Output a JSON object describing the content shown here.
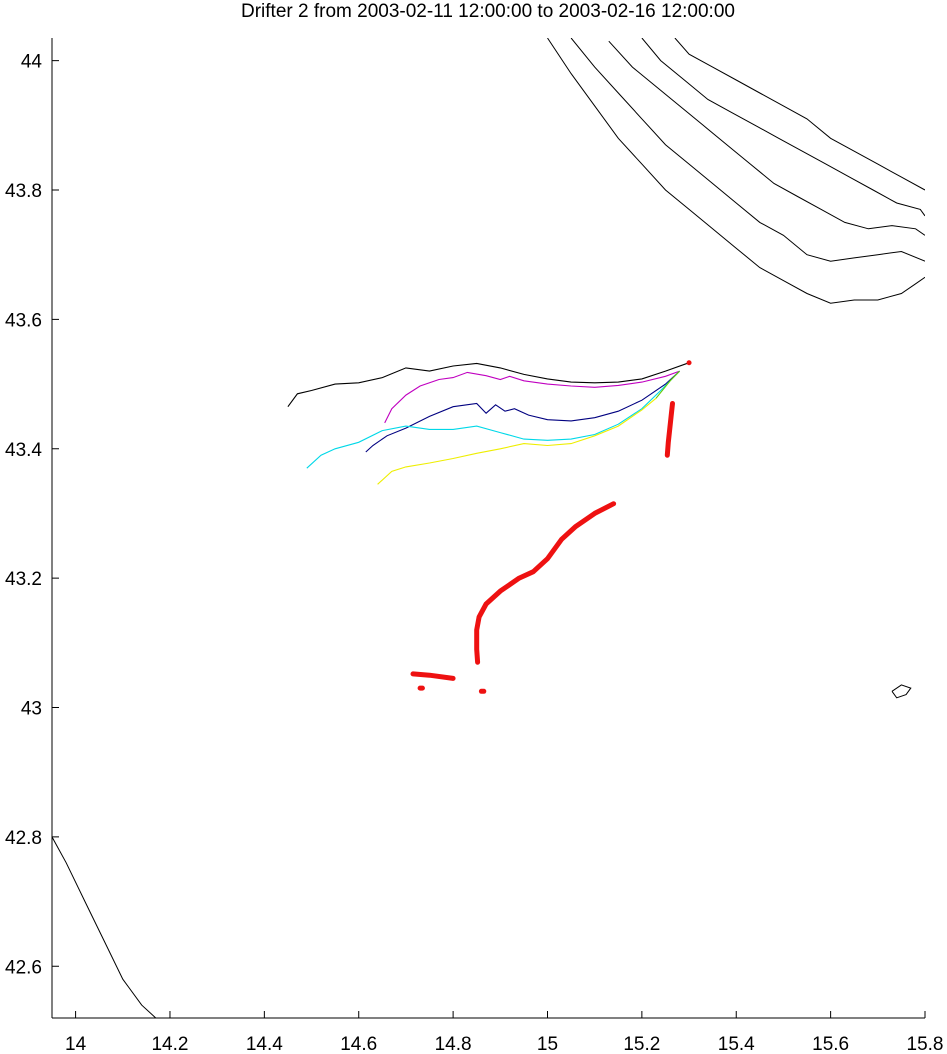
{
  "title": "Drifter 2 from 2003-02-11 12:00:00 to 2003-02-16 12:00:00",
  "chart_data": {
    "type": "map",
    "title": "Drifter 2 from 2003-02-11 12:00:00 to 2003-02-16 12:00:00",
    "xlabel": "",
    "ylabel": "",
    "xlim": [
      13.95,
      15.8
    ],
    "ylim": [
      42.52,
      44.035
    ],
    "x_ticks": [
      14,
      14.2,
      14.4,
      14.6,
      14.8,
      15,
      15.2,
      15.4,
      15.6,
      15.8
    ],
    "x_tick_labels": [
      "14",
      "14.2",
      "14.4",
      "14.6",
      "14.8",
      "15",
      "15.2",
      "15.4",
      "15.6",
      "15.8"
    ],
    "y_ticks": [
      42.6,
      42.8,
      43,
      43.2,
      43.4,
      43.6,
      43.8,
      44
    ],
    "y_tick_labels": [
      "42.6",
      "42.8",
      "43",
      "43.2",
      "43.4",
      "43.6",
      "43.8",
      "44"
    ],
    "grid": false,
    "colors": {
      "observed": "#ee1111",
      "coast": "#000000",
      "black": "#000000",
      "magenta": "#c000c0",
      "navy": "#000080",
      "cyan": "#00d8e8",
      "yellow": "#eeee00",
      "green": "#66cc00"
    },
    "observed_track": [
      [
        [
          15.265,
          43.47
        ],
        [
          15.262,
          43.45
        ],
        [
          15.259,
          43.43
        ],
        [
          15.256,
          43.41
        ],
        [
          15.254,
          43.39
        ]
      ],
      [
        [
          15.14,
          43.315
        ],
        [
          15.1,
          43.3
        ],
        [
          15.06,
          43.28
        ],
        [
          15.03,
          43.26
        ],
        [
          15.0,
          43.23
        ],
        [
          14.97,
          43.21
        ],
        [
          14.94,
          43.2
        ],
        [
          14.9,
          43.18
        ],
        [
          14.87,
          43.16
        ],
        [
          14.855,
          43.14
        ],
        [
          14.85,
          43.12
        ],
        [
          14.85,
          43.09
        ],
        [
          14.852,
          43.07
        ]
      ],
      [
        [
          14.715,
          43.052
        ],
        [
          14.75,
          43.05
        ],
        [
          14.8,
          43.045
        ]
      ],
      [
        [
          14.73,
          43.03
        ],
        [
          14.735,
          43.03
        ]
      ],
      [
        [
          14.86,
          43.025
        ],
        [
          14.865,
          43.025
        ]
      ]
    ],
    "model_tracks": [
      {
        "color": "black",
        "points": [
          [
            15.3,
            43.533
          ],
          [
            15.25,
            43.52
          ],
          [
            15.2,
            43.508
          ],
          [
            15.15,
            43.503
          ],
          [
            15.1,
            43.502
          ],
          [
            15.05,
            43.503
          ],
          [
            15.0,
            43.508
          ],
          [
            14.95,
            43.515
          ],
          [
            14.9,
            43.525
          ],
          [
            14.85,
            43.532
          ],
          [
            14.8,
            43.528
          ],
          [
            14.75,
            43.52
          ],
          [
            14.7,
            43.525
          ],
          [
            14.65,
            43.51
          ],
          [
            14.6,
            43.502
          ],
          [
            14.55,
            43.5
          ],
          [
            14.5,
            43.49
          ],
          [
            14.47,
            43.485
          ],
          [
            14.45,
            43.465
          ]
        ]
      },
      {
        "color": "magenta",
        "points": [
          [
            15.28,
            43.52
          ],
          [
            15.25,
            43.512
          ],
          [
            15.2,
            43.503
          ],
          [
            15.15,
            43.498
          ],
          [
            15.1,
            43.495
          ],
          [
            15.05,
            43.497
          ],
          [
            15.0,
            43.5
          ],
          [
            14.95,
            43.505
          ],
          [
            14.92,
            43.512
          ],
          [
            14.9,
            43.507
          ],
          [
            14.87,
            43.513
          ],
          [
            14.83,
            43.518
          ],
          [
            14.8,
            43.51
          ],
          [
            14.77,
            43.507
          ],
          [
            14.73,
            43.497
          ],
          [
            14.7,
            43.483
          ],
          [
            14.67,
            43.462
          ],
          [
            14.655,
            43.44
          ]
        ]
      },
      {
        "color": "navy",
        "points": [
          [
            15.28,
            43.52
          ],
          [
            15.25,
            43.5
          ],
          [
            15.2,
            43.475
          ],
          [
            15.15,
            43.458
          ],
          [
            15.1,
            43.448
          ],
          [
            15.05,
            43.443
          ],
          [
            15.0,
            43.445
          ],
          [
            14.96,
            43.452
          ],
          [
            14.93,
            43.462
          ],
          [
            14.91,
            43.458
          ],
          [
            14.89,
            43.468
          ],
          [
            14.87,
            43.455
          ],
          [
            14.85,
            43.47
          ],
          [
            14.8,
            43.465
          ],
          [
            14.75,
            43.45
          ],
          [
            14.7,
            43.432
          ],
          [
            14.66,
            43.42
          ],
          [
            14.63,
            43.405
          ],
          [
            14.615,
            43.395
          ]
        ]
      },
      {
        "color": "cyan",
        "points": [
          [
            15.28,
            43.52
          ],
          [
            15.24,
            43.49
          ],
          [
            15.2,
            43.462
          ],
          [
            15.15,
            43.438
          ],
          [
            15.1,
            43.422
          ],
          [
            15.05,
            43.415
          ],
          [
            15.0,
            43.413
          ],
          [
            14.95,
            43.415
          ],
          [
            14.9,
            43.425
          ],
          [
            14.85,
            43.435
          ],
          [
            14.8,
            43.43
          ],
          [
            14.75,
            43.43
          ],
          [
            14.7,
            43.435
          ],
          [
            14.65,
            43.428
          ],
          [
            14.6,
            43.41
          ],
          [
            14.55,
            43.4
          ],
          [
            14.52,
            43.39
          ],
          [
            14.49,
            43.37
          ]
        ]
      },
      {
        "color": "yellow",
        "points": [
          [
            15.23,
            43.478
          ],
          [
            15.2,
            43.46
          ],
          [
            15.15,
            43.435
          ],
          [
            15.1,
            43.42
          ],
          [
            15.05,
            43.408
          ],
          [
            15.0,
            43.405
          ],
          [
            14.95,
            43.408
          ],
          [
            14.9,
            43.4
          ],
          [
            14.85,
            43.393
          ],
          [
            14.8,
            43.385
          ],
          [
            14.75,
            43.378
          ],
          [
            14.7,
            43.372
          ],
          [
            14.67,
            43.365
          ],
          [
            14.64,
            43.345
          ]
        ]
      },
      {
        "color": "green",
        "points": [
          [
            15.28,
            43.52
          ],
          [
            15.26,
            43.505
          ],
          [
            15.23,
            43.478
          ]
        ]
      }
    ],
    "coastlines": [
      [
        [
          15.0,
          44.035
        ],
        [
          15.05,
          43.98
        ],
        [
          15.1,
          43.93
        ],
        [
          15.15,
          43.88
        ],
        [
          15.2,
          43.84
        ],
        [
          15.25,
          43.8
        ],
        [
          15.3,
          43.77
        ],
        [
          15.35,
          43.74
        ],
        [
          15.4,
          43.71
        ],
        [
          15.45,
          43.68
        ],
        [
          15.5,
          43.66
        ],
        [
          15.55,
          43.64
        ],
        [
          15.6,
          43.625
        ],
        [
          15.65,
          43.63
        ],
        [
          15.7,
          43.63
        ],
        [
          15.75,
          43.64
        ],
        [
          15.78,
          43.655
        ],
        [
          15.8,
          43.665
        ]
      ],
      [
        [
          15.05,
          44.035
        ],
        [
          15.1,
          43.99
        ],
        [
          15.15,
          43.95
        ],
        [
          15.2,
          43.91
        ],
        [
          15.25,
          43.87
        ],
        [
          15.3,
          43.84
        ],
        [
          15.35,
          43.81
        ],
        [
          15.4,
          43.78
        ],
        [
          15.45,
          43.75
        ],
        [
          15.5,
          43.73
        ],
        [
          15.55,
          43.7
        ],
        [
          15.6,
          43.69
        ],
        [
          15.65,
          43.695
        ],
        [
          15.7,
          43.7
        ],
        [
          15.75,
          43.705
        ],
        [
          15.8,
          43.69
        ]
      ],
      [
        [
          15.13,
          44.03
        ],
        [
          15.18,
          43.99
        ],
        [
          15.23,
          43.96
        ],
        [
          15.28,
          43.93
        ],
        [
          15.33,
          43.9
        ],
        [
          15.38,
          43.87
        ],
        [
          15.43,
          43.84
        ],
        [
          15.48,
          43.81
        ],
        [
          15.53,
          43.79
        ],
        [
          15.58,
          43.77
        ],
        [
          15.63,
          43.75
        ],
        [
          15.68,
          43.74
        ],
        [
          15.73,
          43.745
        ],
        [
          15.78,
          43.74
        ],
        [
          15.8,
          43.73
        ]
      ],
      [
        [
          15.2,
          44.035
        ],
        [
          15.24,
          44.0
        ],
        [
          15.29,
          43.97
        ],
        [
          15.34,
          43.94
        ],
        [
          15.39,
          43.92
        ],
        [
          15.44,
          43.9
        ],
        [
          15.49,
          43.88
        ],
        [
          15.54,
          43.86
        ],
        [
          15.59,
          43.84
        ],
        [
          15.64,
          43.82
        ],
        [
          15.69,
          43.8
        ],
        [
          15.74,
          43.78
        ],
        [
          15.79,
          43.77
        ],
        [
          15.8,
          43.76
        ]
      ],
      [
        [
          15.27,
          44.035
        ],
        [
          15.3,
          44.01
        ],
        [
          15.35,
          43.99
        ],
        [
          15.4,
          43.97
        ],
        [
          15.45,
          43.95
        ],
        [
          15.5,
          43.93
        ],
        [
          15.55,
          43.91
        ],
        [
          15.6,
          43.88
        ],
        [
          15.65,
          43.86
        ],
        [
          15.7,
          43.84
        ],
        [
          15.75,
          43.82
        ],
        [
          15.8,
          43.8
        ]
      ],
      [
        [
          13.95,
          42.8
        ],
        [
          13.98,
          42.76
        ],
        [
          14.02,
          42.7
        ],
        [
          14.06,
          42.64
        ],
        [
          14.1,
          42.58
        ],
        [
          14.14,
          42.54
        ],
        [
          14.17,
          42.52
        ]
      ],
      [
        [
          15.73,
          43.025
        ],
        [
          15.75,
          43.035
        ],
        [
          15.77,
          43.03
        ],
        [
          15.76,
          43.02
        ],
        [
          15.74,
          43.015
        ],
        [
          15.73,
          43.025
        ]
      ]
    ]
  }
}
